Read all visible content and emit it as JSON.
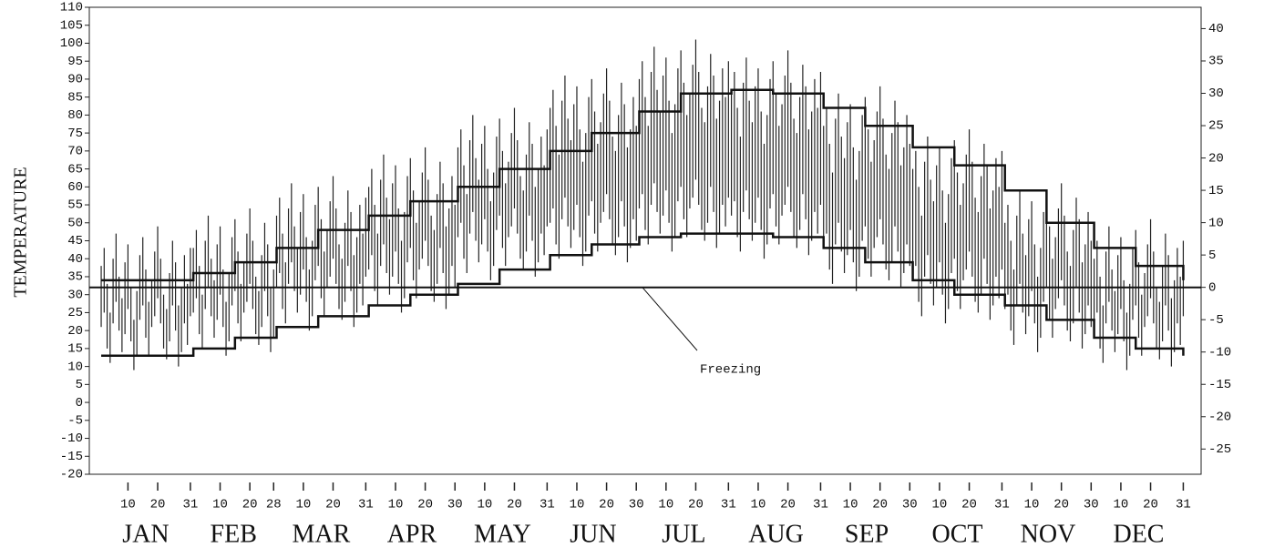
{
  "chart_data": {
    "type": "range",
    "y_label": "TEMPERATURE",
    "xlim": [
      -3,
      371
    ],
    "ylim": [
      -20,
      110
    ],
    "yticks": [
      -20,
      -15,
      -10,
      -5,
      0,
      5,
      10,
      15,
      20,
      25,
      30,
      35,
      40,
      45,
      50,
      55,
      60,
      65,
      70,
      75,
      80,
      85,
      90,
      95,
      100,
      105,
      110
    ],
    "y2lim": [
      -28.9,
      43.3
    ],
    "y2ticks": [
      -25,
      -20,
      -15,
      -10,
      -5,
      0,
      5,
      10,
      15,
      20,
      25,
      30,
      35,
      40
    ],
    "xticks": [
      {
        "value": 10,
        "label": "10"
      },
      {
        "value": 20,
        "label": "20"
      },
      {
        "value": 31,
        "label": "31"
      },
      {
        "value": 41,
        "label": "10"
      },
      {
        "value": 51,
        "label": "20"
      },
      {
        "value": 59,
        "label": "28"
      },
      {
        "value": 69,
        "label": "10"
      },
      {
        "value": 79,
        "label": "20"
      },
      {
        "value": 90,
        "label": "31"
      },
      {
        "value": 100,
        "label": "10"
      },
      {
        "value": 110,
        "label": "20"
      },
      {
        "value": 120,
        "label": "30"
      },
      {
        "value": 130,
        "label": "10"
      },
      {
        "value": 140,
        "label": "20"
      },
      {
        "value": 151,
        "label": "31"
      },
      {
        "value": 161,
        "label": "10"
      },
      {
        "value": 171,
        "label": "20"
      },
      {
        "value": 181,
        "label": "30"
      },
      {
        "value": 191,
        "label": "10"
      },
      {
        "value": 201,
        "label": "20"
      },
      {
        "value": 212,
        "label": "31"
      },
      {
        "value": 222,
        "label": "10"
      },
      {
        "value": 232,
        "label": "20"
      },
      {
        "value": 243,
        "label": "31"
      },
      {
        "value": 253,
        "label": "10"
      },
      {
        "value": 263,
        "label": "20"
      },
      {
        "value": 273,
        "label": "30"
      },
      {
        "value": 283,
        "label": "10"
      },
      {
        "value": 293,
        "label": "20"
      },
      {
        "value": 304,
        "label": "31"
      },
      {
        "value": 314,
        "label": "10"
      },
      {
        "value": 324,
        "label": "20"
      },
      {
        "value": 334,
        "label": "30"
      },
      {
        "value": 344,
        "label": "10"
      },
      {
        "value": 354,
        "label": "20"
      },
      {
        "value": 365,
        "label": "31"
      }
    ],
    "color": "#222222",
    "freezing": {
      "value": 32,
      "label": "Freezing"
    },
    "months": [
      {
        "label": "JAN",
        "highs": [
          38,
          43,
          33,
          25,
          40,
          47,
          35,
          29,
          39,
          44,
          32,
          23,
          31,
          41,
          46,
          37,
          28,
          34,
          42,
          49,
          40,
          30,
          26,
          36,
          45,
          39,
          27,
          32,
          41,
          33,
          43
        ],
        "lows": [
          21,
          25,
          15,
          11,
          22,
          28,
          20,
          14,
          19,
          26,
          17,
          9,
          13,
          23,
          27,
          18,
          13,
          21,
          24,
          29,
          22,
          15,
          12,
          17,
          27,
          20,
          10,
          14,
          22,
          16,
          24
        ]
      },
      {
        "label": "FEB",
        "highs": [
          43,
          48,
          38,
          30,
          45,
          52,
          40,
          34,
          44,
          49,
          37,
          28,
          36,
          46,
          51,
          42,
          33,
          39,
          47,
          54,
          45,
          35,
          31,
          41,
          50,
          44,
          32,
          37
        ],
        "lows": [
          25,
          29,
          19,
          15,
          26,
          32,
          24,
          18,
          23,
          30,
          21,
          13,
          17,
          27,
          31,
          22,
          17,
          25,
          28,
          33,
          26,
          19,
          16,
          21,
          31,
          24,
          14,
          18
        ]
      },
      {
        "label": "MAR",
        "highs": [
          52,
          57,
          47,
          39,
          54,
          61,
          49,
          43,
          53,
          58,
          46,
          37,
          45,
          55,
          60,
          51,
          42,
          48,
          56,
          63,
          54,
          44,
          40,
          50,
          59,
          53,
          41,
          46,
          55,
          47,
          57
        ],
        "lows": [
          32,
          36,
          26,
          22,
          33,
          39,
          31,
          25,
          30,
          37,
          28,
          20,
          24,
          34,
          38,
          29,
          24,
          32,
          35,
          40,
          33,
          26,
          23,
          28,
          38,
          31,
          21,
          25,
          33,
          27,
          35
        ]
      },
      {
        "label": "APR",
        "highs": [
          60,
          65,
          55,
          47,
          62,
          69,
          57,
          51,
          61,
          66,
          54,
          45,
          53,
          63,
          68,
          59,
          50,
          56,
          64,
          71,
          62,
          52,
          48,
          58,
          67,
          61,
          49,
          54,
          63,
          55
        ],
        "lows": [
          37,
          41,
          31,
          27,
          38,
          44,
          36,
          30,
          35,
          42,
          33,
          25,
          29,
          39,
          43,
          34,
          29,
          37,
          40,
          45,
          38,
          31,
          28,
          33,
          43,
          36,
          26,
          30,
          38,
          32
        ]
      },
      {
        "label": "MAY",
        "highs": [
          71,
          76,
          66,
          58,
          73,
          80,
          68,
          62,
          72,
          77,
          65,
          56,
          64,
          74,
          79,
          70,
          61,
          67,
          75,
          82,
          73,
          63,
          59,
          69,
          78,
          72,
          60,
          65,
          74,
          66,
          76
        ],
        "lows": [
          46,
          50,
          40,
          36,
          47,
          53,
          45,
          39,
          44,
          51,
          42,
          34,
          38,
          48,
          52,
          43,
          38,
          46,
          49,
          54,
          47,
          40,
          37,
          42,
          52,
          45,
          35,
          39,
          47,
          41,
          49
        ]
      },
      {
        "label": "JUN",
        "highs": [
          82,
          87,
          77,
          69,
          84,
          91,
          79,
          73,
          83,
          88,
          76,
          67,
          75,
          85,
          90,
          81,
          72,
          78,
          86,
          93,
          84,
          74,
          70,
          80,
          89,
          83,
          71,
          76,
          85,
          77
        ],
        "lows": [
          50,
          54,
          44,
          40,
          51,
          57,
          49,
          43,
          48,
          55,
          46,
          38,
          42,
          52,
          56,
          47,
          42,
          50,
          53,
          58,
          51,
          44,
          41,
          46,
          56,
          49,
          39,
          43,
          51,
          45
        ]
      },
      {
        "label": "JUL",
        "highs": [
          90,
          95,
          85,
          77,
          92,
          99,
          87,
          81,
          91,
          96,
          84,
          75,
          83,
          93,
          98,
          89,
          80,
          86,
          94,
          101,
          92,
          82,
          78,
          88,
          97,
          91,
          79,
          84,
          93,
          85,
          95
        ],
        "lows": [
          54,
          58,
          48,
          44,
          55,
          61,
          53,
          47,
          52,
          59,
          50,
          42,
          46,
          56,
          60,
          51,
          46,
          54,
          57,
          62,
          55,
          48,
          45,
          50,
          60,
          53,
          43,
          47,
          55,
          49,
          57
        ]
      },
      {
        "label": "AUG",
        "highs": [
          87,
          92,
          82,
          74,
          89,
          96,
          84,
          78,
          88,
          93,
          81,
          72,
          80,
          90,
          95,
          86,
          77,
          83,
          91,
          98,
          89,
          79,
          75,
          85,
          94,
          88,
          76,
          81,
          90,
          82,
          92
        ],
        "lows": [
          52,
          56,
          46,
          42,
          53,
          59,
          51,
          45,
          50,
          57,
          48,
          40,
          44,
          54,
          58,
          49,
          44,
          52,
          55,
          60,
          53,
          46,
          43,
          48,
          58,
          51,
          41,
          45,
          53,
          47,
          55
        ]
      },
      {
        "label": "SEP",
        "highs": [
          77,
          82,
          72,
          64,
          79,
          86,
          74,
          68,
          78,
          83,
          71,
          62,
          70,
          80,
          85,
          76,
          67,
          73,
          81,
          88,
          79,
          69,
          65,
          75,
          84,
          78,
          66,
          71,
          80,
          72
        ],
        "lows": [
          43,
          47,
          37,
          33,
          44,
          50,
          42,
          36,
          41,
          48,
          39,
          31,
          35,
          45,
          49,
          40,
          35,
          43,
          46,
          51,
          44,
          37,
          34,
          39,
          49,
          42,
          32,
          36,
          44,
          38
        ]
      },
      {
        "label": "OCT",
        "highs": [
          65,
          70,
          60,
          52,
          67,
          74,
          62,
          56,
          66,
          71,
          59,
          50,
          58,
          68,
          73,
          64,
          55,
          61,
          69,
          76,
          67,
          57,
          53,
          63,
          72,
          66,
          54,
          59,
          68,
          60,
          70
        ],
        "lows": [
          34,
          38,
          28,
          24,
          35,
          41,
          33,
          27,
          32,
          39,
          30,
          22,
          26,
          36,
          40,
          31,
          26,
          34,
          37,
          42,
          35,
          28,
          25,
          30,
          40,
          33,
          23,
          27,
          35,
          29,
          37
        ]
      },
      {
        "label": "NOV",
        "highs": [
          50,
          55,
          45,
          37,
          52,
          59,
          47,
          41,
          51,
          56,
          44,
          35,
          43,
          53,
          58,
          49,
          40,
          46,
          54,
          61,
          52,
          42,
          38,
          48,
          57,
          51,
          39,
          44,
          53,
          45
        ],
        "lows": [
          26,
          30,
          20,
          16,
          27,
          33,
          25,
          19,
          24,
          31,
          22,
          14,
          18,
          28,
          32,
          23,
          18,
          26,
          29,
          34,
          27,
          20,
          17,
          22,
          32,
          25,
          15,
          19,
          27,
          21
        ]
      },
      {
        "label": "DEC",
        "highs": [
          40,
          45,
          35,
          27,
          42,
          49,
          37,
          31,
          41,
          46,
          34,
          25,
          33,
          43,
          48,
          39,
          30,
          36,
          44,
          51,
          42,
          32,
          28,
          38,
          47,
          41,
          29,
          34,
          43,
          35,
          45
        ],
        "lows": [
          21,
          25,
          15,
          11,
          22,
          28,
          20,
          14,
          19,
          26,
          17,
          9,
          13,
          23,
          27,
          18,
          13,
          21,
          24,
          29,
          22,
          15,
          12,
          17,
          27,
          20,
          10,
          14,
          22,
          16,
          24
        ]
      }
    ],
    "normals": {
      "x": [
        1,
        15,
        32,
        46,
        60,
        74,
        91,
        105,
        121,
        135,
        152,
        166,
        182,
        196,
        213,
        227,
        244,
        258,
        274,
        288,
        305,
        319,
        335,
        349,
        365
      ],
      "high": [
        34,
        34,
        36,
        39,
        43,
        48,
        52,
        56,
        60,
        65,
        70,
        75,
        81,
        86,
        87,
        86,
        82,
        77,
        71,
        66,
        59,
        50,
        43,
        38,
        34
      ],
      "low": [
        13,
        13,
        15,
        18,
        21,
        24,
        27,
        30,
        33,
        37,
        41,
        44,
        46,
        47,
        47,
        46,
        43,
        39,
        34,
        30,
        27,
        23,
        18,
        15,
        13
      ]
    }
  }
}
